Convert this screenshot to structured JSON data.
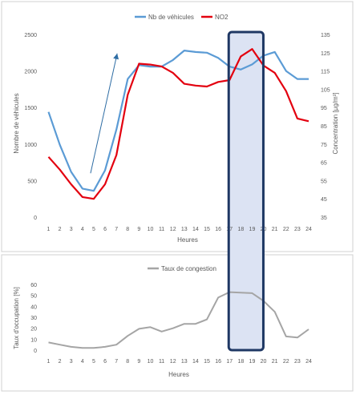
{
  "chart_data": [
    {
      "type": "line",
      "x": [
        1,
        2,
        3,
        4,
        5,
        6,
        7,
        8,
        9,
        10,
        11,
        12,
        13,
        14,
        15,
        16,
        17,
        18,
        19,
        20,
        21,
        22,
        23,
        24
      ],
      "xlabel": "Heures",
      "ylabel": "Nombre de véhicules",
      "y2label": "Concentration [µg/m³]",
      "ylim": [
        0,
        2500
      ],
      "y2lim": [
        35,
        135
      ],
      "yticks": [
        0,
        500,
        1000,
        1500,
        2000,
        2500
      ],
      "y2ticks": [
        35,
        45,
        55,
        65,
        75,
        85,
        95,
        105,
        115,
        125,
        135
      ],
      "legend_position": "top",
      "series": [
        {
          "name": "Nb de véhicules",
          "axis": "left",
          "color": "#5b9bd5",
          "values": [
            1440,
            990,
            620,
            390,
            360,
            640,
            1200,
            1890,
            2080,
            2060,
            2060,
            2150,
            2280,
            2260,
            2250,
            2180,
            2060,
            2020,
            2090,
            2210,
            2260,
            2000,
            1890,
            1890
          ]
        },
        {
          "name": "NO2",
          "axis": "right",
          "color": "#e3000f",
          "values": [
            68,
            61,
            53,
            46,
            45,
            53,
            69,
            102,
            119,
            118.5,
            117.5,
            114,
            108,
            107,
            106.5,
            109,
            110,
            123,
            127,
            118,
            114,
            104,
            89,
            87.5
          ]
        }
      ],
      "highlight": {
        "x_from": 17,
        "x_to": 19,
        "color": "#dce3f3",
        "border": "#1f3864"
      },
      "annotation": {
        "type": "arrow",
        "from_x": 5,
        "from_y": 600,
        "to_x": 7,
        "to_y": 2240,
        "color": "#2e6da4"
      }
    },
    {
      "type": "line",
      "x": [
        1,
        2,
        3,
        4,
        5,
        6,
        7,
        8,
        9,
        10,
        11,
        12,
        13,
        14,
        15,
        16,
        17,
        18,
        19,
        20,
        21,
        22,
        23,
        24
      ],
      "xlabel": "Heures",
      "ylabel": "Taux d'occupation [%]",
      "ylim": [
        0,
        60
      ],
      "yticks": [
        0,
        10,
        20,
        30,
        40,
        50,
        60
      ],
      "legend_position": "top",
      "series": [
        {
          "name": "Taux de congestion",
          "color": "#a5a5a5",
          "values": [
            7,
            5,
            3,
            2,
            2,
            3,
            5,
            13,
            19.5,
            21,
            17,
            20,
            24,
            24,
            28,
            48,
            53,
            52.5,
            52,
            45,
            35,
            12.5,
            11.5,
            19
          ]
        }
      ],
      "highlight": {
        "x_from": 17,
        "x_to": 19,
        "color": "#dce3f3",
        "border": "#1f3864"
      }
    }
  ]
}
